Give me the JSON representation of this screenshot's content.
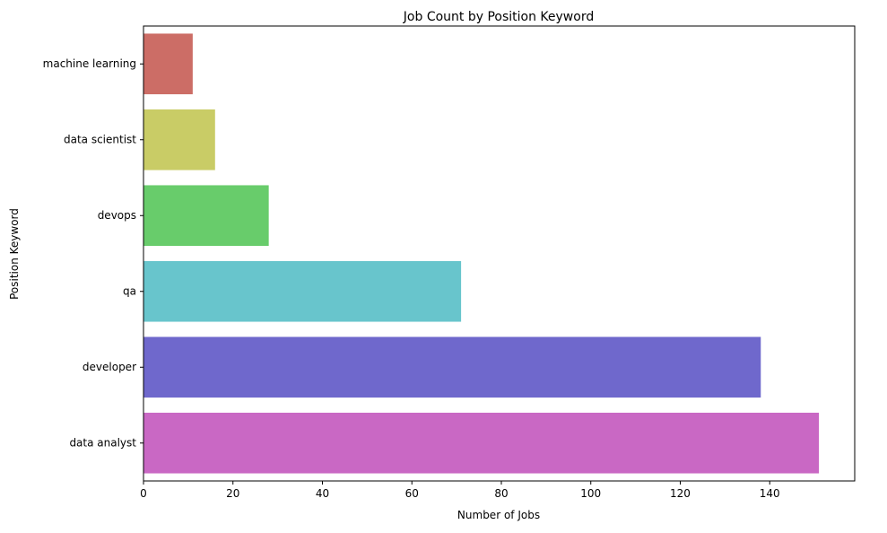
{
  "chart_data": {
    "type": "bar",
    "orientation": "horizontal",
    "title": "Job Count by Position Keyword",
    "xlabel": "Number of Jobs",
    "ylabel": "Position Keyword",
    "categories": [
      "machine learning",
      "data scientist",
      "devops",
      "qa",
      "developer",
      "data analyst"
    ],
    "values": [
      11,
      16,
      28,
      71,
      138,
      151
    ],
    "colors": [
      "#cc6d66",
      "#c9cc66",
      "#68cc6b",
      "#68c5cc",
      "#6f68cc",
      "#c968c4"
    ],
    "xlim": [
      0,
      159
    ],
    "xticks": [
      0,
      20,
      40,
      60,
      80,
      100,
      120,
      140
    ],
    "grid": false,
    "legend": "none"
  }
}
